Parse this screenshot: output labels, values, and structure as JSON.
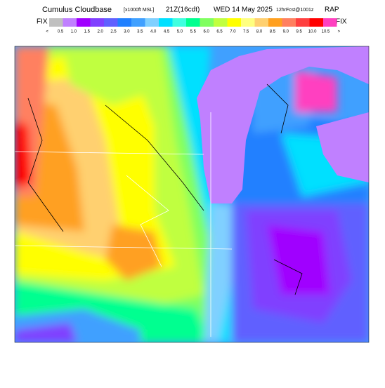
{
  "header": {
    "title": "Cumulus Cloudbase",
    "units": "[x1000ft MSL]",
    "valid_time": "21Z(16cdt)",
    "date": "WED 14 May 2025",
    "forecast": "12hrFcst@1001z",
    "model": "RAP"
  },
  "scale": {
    "left_label": "FIX",
    "right_label": "FIX",
    "labels": [
      "<",
      "0.5",
      "1.0",
      "1.5",
      "2.0",
      "2.5",
      "3.0",
      "3.5",
      "4.0",
      "4.5",
      "5.0",
      "5.5",
      "6.0",
      "6.5",
      "7.0",
      "7.5",
      "8.0",
      "8.5",
      "9.0",
      "9.5",
      "10.0",
      "10.5",
      ">"
    ],
    "colors": [
      "#c0c0c0",
      "#c080ff",
      "#a000ff",
      "#8040ff",
      "#6060ff",
      "#2080ff",
      "#40a0ff",
      "#80d0ff",
      "#00e0ff",
      "#40ffe0",
      "#00ff90",
      "#80ff60",
      "#c0ff40",
      "#ffff00",
      "#ffff80",
      "#ffd070",
      "#ffa020",
      "#ff8060",
      "#ff4040",
      "#ff0000",
      "#ff40c0"
    ]
  }
}
